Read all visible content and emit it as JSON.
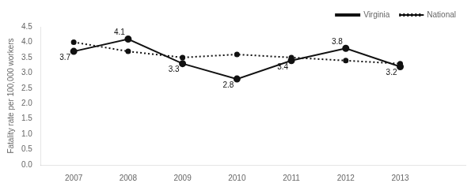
{
  "chart_data": {
    "type": "line",
    "x": [
      2007,
      2008,
      2009,
      2010,
      2011,
      2012,
      2013
    ],
    "series": [
      {
        "name": "Virginia",
        "color": "#111111",
        "values": [
          3.7,
          4.1,
          3.3,
          2.8,
          3.4,
          3.8,
          3.2
        ],
        "line_style": "solid",
        "marker": "circle",
        "data_labels": true
      },
      {
        "name": "National",
        "color": "#111111",
        "values": [
          4.0,
          3.7,
          3.5,
          3.6,
          3.5,
          3.4,
          3.3
        ],
        "line_style": "dotted",
        "marker": "circle"
      }
    ],
    "ylabel": "Fatality rate per 100,000 workers",
    "xlim": [
      2006.4,
      2014.2
    ],
    "xticks": [
      2007,
      2008,
      2009,
      2010,
      2011,
      2012,
      2013
    ],
    "ylim": [
      0,
      4.5
    ],
    "yticks": [
      {
        "value": 0,
        "label": "0.0"
      },
      0.5,
      {
        "value": 1,
        "label": "1.0"
      },
      1.5,
      {
        "value": 2,
        "label": "2.0"
      },
      2.5,
      {
        "value": 3,
        "label": "3.0"
      },
      3.5,
      {
        "value": 4,
        "label": "4.0"
      },
      4.5
    ],
    "legend": "upper right",
    "grid": false
  }
}
